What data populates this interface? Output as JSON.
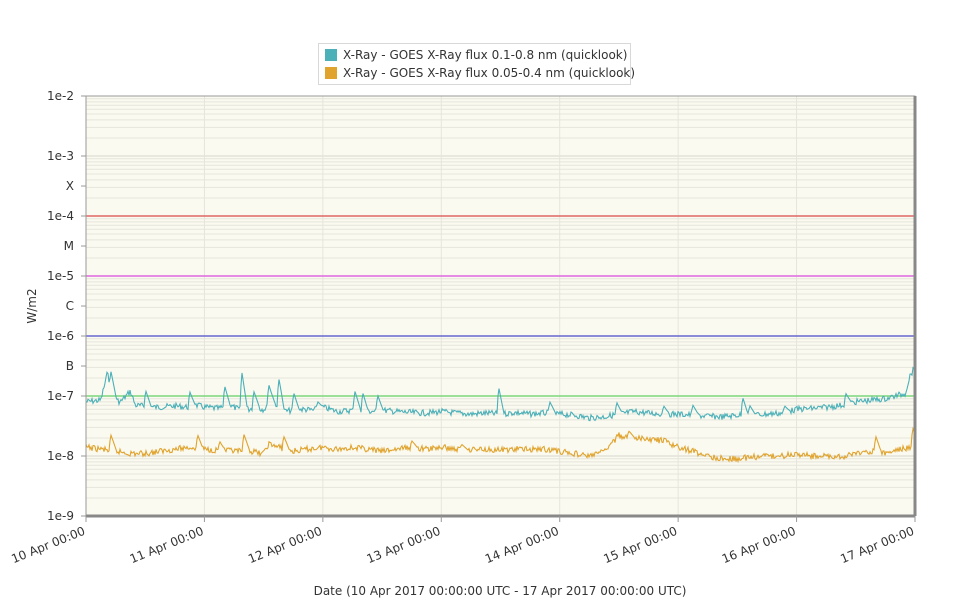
{
  "chart_data": {
    "type": "line",
    "title": "",
    "xlabel": "Date (10 Apr 2017 00:00:00 UTC - 17 Apr 2017 00:00:00 UTC)",
    "ylabel": "W/m2",
    "y_scale": "log",
    "ylim": [
      1e-09,
      0.01
    ],
    "xlim": [
      "10 Apr 00:00",
      "17 Apr 00:00"
    ],
    "x_ticks": [
      "10 Apr 00:00",
      "11 Apr 00:00",
      "12 Apr 00:00",
      "13 Apr 00:00",
      "14 Apr 00:00",
      "15 Apr 00:00",
      "16 Apr 00:00",
      "17 Apr 00:00"
    ],
    "y_ticks": [
      {
        "label": "1e-2",
        "value": 0.01
      },
      {
        "label": "1e-3",
        "value": 0.001
      },
      {
        "label": "X",
        "value": 0.000316
      },
      {
        "label": "1e-4",
        "value": 0.0001
      },
      {
        "label": "M",
        "value": 3.16e-05
      },
      {
        "label": "1e-5",
        "value": 1e-05
      },
      {
        "label": "C",
        "value": 3.16e-06
      },
      {
        "label": "1e-6",
        "value": 1e-06
      },
      {
        "label": "B",
        "value": 3.16e-07
      },
      {
        "label": "1e-7",
        "value": 1e-07
      },
      {
        "label": "1e-8",
        "value": 1e-08
      },
      {
        "label": "1e-9",
        "value": 1e-09
      }
    ],
    "threshold_lines": [
      {
        "value": 0.0001,
        "color": "#e06666"
      },
      {
        "value": 1e-05,
        "color": "#e066e0"
      },
      {
        "value": 1e-06,
        "color": "#6666d0"
      },
      {
        "value": 1e-07,
        "color": "#7cd67c"
      }
    ],
    "grid": true,
    "legend_position": "top",
    "series": [
      {
        "name": "X-Ray - GOES X-Ray flux 0.1-0.8 nm (quicklook)",
        "color": "#4bb0b8",
        "points": [
          [
            "10 Apr 00:00",
            8e-08
          ],
          [
            "10 Apr 03:00",
            8.5e-08
          ],
          [
            "10 Apr 04:30",
            2.7e-07
          ],
          [
            "10 Apr 05:00",
            9e-08
          ],
          [
            "10 Apr 07:00",
            8e-08
          ],
          [
            "10 Apr 09:00",
            1.2e-07
          ],
          [
            "10 Apr 10:00",
            7e-08
          ],
          [
            "10 Apr 14:00",
            6.5e-08
          ],
          [
            "10 Apr 18:00",
            6.8e-08
          ],
          [
            "10 Apr 21:00",
            6.5e-08
          ],
          [
            "10 Apr 22:30",
            7e-08
          ],
          [
            "11 Apr 00:00",
            6.5e-08
          ],
          [
            "11 Apr 03:00",
            6.2e-08
          ],
          [
            "11 Apr 05:00",
            7e-08
          ],
          [
            "11 Apr 07:00",
            6e-08
          ],
          [
            "11 Apr 09:00",
            6e-08
          ],
          [
            "11 Apr 10:00",
            6.5e-08
          ],
          [
            "11 Apr 12:00",
            6e-08
          ],
          [
            "11 Apr 14:00",
            8e-08
          ],
          [
            "11 Apr 16:00",
            5.5e-08
          ],
          [
            "11 Apr 18:00",
            5.8e-08
          ],
          [
            "11 Apr 20:00",
            6e-08
          ],
          [
            "11 Apr 22:00",
            5.8e-08
          ],
          [
            "12 Apr 00:00",
            6.5e-08
          ],
          [
            "12 Apr 03:00",
            5.5e-08
          ],
          [
            "12 Apr 06:00",
            5.8e-08
          ],
          [
            "12 Apr 09:00",
            5.5e-08
          ],
          [
            "12 Apr 12:00",
            5.8e-08
          ],
          [
            "12 Apr 15:00",
            5.5e-08
          ],
          [
            "12 Apr 18:00",
            5.3e-08
          ],
          [
            "12 Apr 21:00",
            5.2e-08
          ],
          [
            "13 Apr 00:00",
            5.5e-08
          ],
          [
            "13 Apr 03:00",
            5.2e-08
          ],
          [
            "13 Apr 06:00",
            5e-08
          ],
          [
            "13 Apr 09:00",
            5.2e-08
          ],
          [
            "13 Apr 12:00",
            5e-08
          ],
          [
            "13 Apr 15:00",
            5.3e-08
          ],
          [
            "13 Apr 18:00",
            5e-08
          ],
          [
            "13 Apr 21:00",
            5.2e-08
          ],
          [
            "14 Apr 00:00",
            5e-08
          ],
          [
            "14 Apr 03:00",
            4.8e-08
          ],
          [
            "14 Apr 06:00",
            4.3e-08
          ],
          [
            "14 Apr 09:00",
            4.5e-08
          ],
          [
            "14 Apr 12:00",
            5e-08
          ],
          [
            "14 Apr 15:00",
            5.5e-08
          ],
          [
            "14 Apr 18:00",
            5.2e-08
          ],
          [
            "14 Apr 21:00",
            5e-08
          ],
          [
            "15 Apr 00:00",
            5e-08
          ],
          [
            "15 Apr 03:00",
            4.8e-08
          ],
          [
            "15 Apr 06:00",
            4.6e-08
          ],
          [
            "15 Apr 09:00",
            4.5e-08
          ],
          [
            "15 Apr 12:00",
            4.8e-08
          ],
          [
            "15 Apr 15:00",
            4.8e-08
          ],
          [
            "15 Apr 18:00",
            5e-08
          ],
          [
            "15 Apr 21:00",
            5.2e-08
          ],
          [
            "16 Apr 00:00",
            6e-08
          ],
          [
            "16 Apr 03:00",
            6.2e-08
          ],
          [
            "16 Apr 06:00",
            6.5e-08
          ],
          [
            "16 Apr 09:00",
            7e-08
          ],
          [
            "16 Apr 12:00",
            8e-08
          ],
          [
            "16 Apr 15:00",
            8.5e-08
          ],
          [
            "16 Apr 18:00",
            9e-08
          ],
          [
            "16 Apr 20:00",
            1e-07
          ],
          [
            "16 Apr 22:00",
            1.1e-07
          ],
          [
            "16 Apr 23:00",
            2.2e-07
          ],
          [
            "17 Apr 00:00",
            3e-07
          ]
        ],
        "spikes": [
          [
            "10 Apr 05:00",
            2.7e-07
          ],
          [
            "10 Apr 12:00",
            1.3e-07
          ],
          [
            "10 Apr 21:00",
            1.2e-07
          ],
          [
            "11 Apr 04:00",
            1.6e-07
          ],
          [
            "11 Apr 07:30",
            2.8e-07
          ],
          [
            "11 Apr 10:00",
            1.2e-07
          ],
          [
            "11 Apr 13:00",
            1.6e-07
          ],
          [
            "11 Apr 15:00",
            2.1e-07
          ],
          [
            "11 Apr 18:00",
            1.2e-07
          ],
          [
            "11 Apr 23:00",
            8e-08
          ],
          [
            "12 Apr 06:30",
            1.2e-07
          ],
          [
            "12 Apr 08:00",
            1.2e-07
          ],
          [
            "12 Apr 11:00",
            1.1e-07
          ],
          [
            "13 Apr 11:30",
            1.6e-07
          ],
          [
            "13 Apr 22:00",
            8e-08
          ],
          [
            "14 Apr 11:30",
            8e-08
          ],
          [
            "14 Apr 21:00",
            7e-08
          ],
          [
            "15 Apr 03:00",
            7e-08
          ],
          [
            "15 Apr 13:00",
            1e-07
          ],
          [
            "15 Apr 14:30",
            7e-08
          ],
          [
            "15 Apr 21:30",
            7e-08
          ],
          [
            "16 Apr 10:00",
            1.1e-07
          ]
        ]
      },
      {
        "name": "X-Ray - GOES X-Ray flux 0.05-0.4 nm (quicklook)",
        "color": "#e0a32d",
        "points": [
          [
            "10 Apr 00:00",
            1.4e-08
          ],
          [
            "10 Apr 03:00",
            1.3e-08
          ],
          [
            "10 Apr 06:00",
            1.2e-08
          ],
          [
            "10 Apr 09:00",
            1.1e-08
          ],
          [
            "10 Apr 12:00",
            1.1e-08
          ],
          [
            "10 Apr 15:00",
            1.2e-08
          ],
          [
            "10 Apr 18:00",
            1.3e-08
          ],
          [
            "10 Apr 21:00",
            1.4e-08
          ],
          [
            "11 Apr 00:00",
            1.3e-08
          ],
          [
            "11 Apr 03:00",
            1.25e-08
          ],
          [
            "11 Apr 06:00",
            1.2e-08
          ],
          [
            "11 Apr 09:00",
            1.2e-08
          ],
          [
            "11 Apr 12:00",
            1.1e-08
          ],
          [
            "11 Apr 13:00",
            1.6e-08
          ],
          [
            "11 Apr 15:00",
            1.4e-08
          ],
          [
            "11 Apr 18:00",
            1.2e-08
          ],
          [
            "11 Apr 21:00",
            1.3e-08
          ],
          [
            "12 Apr 00:00",
            1.4e-08
          ],
          [
            "12 Apr 03:00",
            1.3e-08
          ],
          [
            "12 Apr 06:00",
            1.4e-08
          ],
          [
            "12 Apr 09:00",
            1.3e-08
          ],
          [
            "12 Apr 12:00",
            1.2e-08
          ],
          [
            "12 Apr 15:00",
            1.3e-08
          ],
          [
            "12 Apr 18:00",
            1.4e-08
          ],
          [
            "12 Apr 21:00",
            1.3e-08
          ],
          [
            "13 Apr 00:00",
            1.4e-08
          ],
          [
            "13 Apr 03:00",
            1.3e-08
          ],
          [
            "13 Apr 06:00",
            1.3e-08
          ],
          [
            "13 Apr 09:00",
            1.3e-08
          ],
          [
            "13 Apr 12:00",
            1.25e-08
          ],
          [
            "13 Apr 15:00",
            1.3e-08
          ],
          [
            "13 Apr 18:00",
            1.3e-08
          ],
          [
            "13 Apr 21:00",
            1.3e-08
          ],
          [
            "14 Apr 00:00",
            1.2e-08
          ],
          [
            "14 Apr 03:00",
            1.1e-08
          ],
          [
            "14 Apr 06:00",
            1e-08
          ],
          [
            "14 Apr 09:00",
            1.2e-08
          ],
          [
            "14 Apr 12:00",
            2.2e-08
          ],
          [
            "14 Apr 15:00",
            2e-08
          ],
          [
            "14 Apr 18:00",
            1.9e-08
          ],
          [
            "14 Apr 21:00",
            1.8e-08
          ],
          [
            "15 Apr 00:00",
            1.4e-08
          ],
          [
            "15 Apr 03:00",
            1.2e-08
          ],
          [
            "15 Apr 06:00",
            1e-08
          ],
          [
            "15 Apr 09:00",
            9e-09
          ],
          [
            "15 Apr 12:00",
            9e-09
          ],
          [
            "15 Apr 15:00",
            9.5e-09
          ],
          [
            "15 Apr 18:00",
            1e-08
          ],
          [
            "15 Apr 21:00",
            1e-08
          ],
          [
            "16 Apr 00:00",
            1.1e-08
          ],
          [
            "16 Apr 03:00",
            1e-08
          ],
          [
            "16 Apr 06:00",
            1e-08
          ],
          [
            "16 Apr 09:00",
            9.5e-09
          ],
          [
            "16 Apr 12:00",
            1.1e-08
          ],
          [
            "16 Apr 15:00",
            1.2e-08
          ],
          [
            "16 Apr 18:00",
            1.1e-08
          ],
          [
            "16 Apr 21:00",
            1.3e-08
          ],
          [
            "16 Apr 23:00",
            1.4e-08
          ],
          [
            "17 Apr 00:00",
            1.6e-08
          ]
        ],
        "spikes": [
          [
            "10 Apr 05:00",
            2.3e-08
          ],
          [
            "10 Apr 11:00",
            6e-09
          ],
          [
            "10 Apr 22:30",
            2.4e-08
          ],
          [
            "11 Apr 03:00",
            1.8e-08
          ],
          [
            "11 Apr 08:00",
            2.3e-08
          ],
          [
            "11 Apr 16:00",
            2.2e-08
          ],
          [
            "12 Apr 00:30",
            1e-08
          ],
          [
            "12 Apr 18:00",
            1.8e-08
          ],
          [
            "13 Apr 04:00",
            1.6e-08
          ],
          [
            "14 Apr 14:00",
            2.6e-08
          ],
          [
            "15 Apr 09:00",
            7e-09
          ],
          [
            "15 Apr 14:00",
            7.5e-09
          ],
          [
            "16 Apr 08:00",
            8e-09
          ],
          [
            "16 Apr 16:00",
            2.2e-08
          ],
          [
            "16 Apr 23:30",
            3e-08
          ]
        ]
      }
    ]
  }
}
